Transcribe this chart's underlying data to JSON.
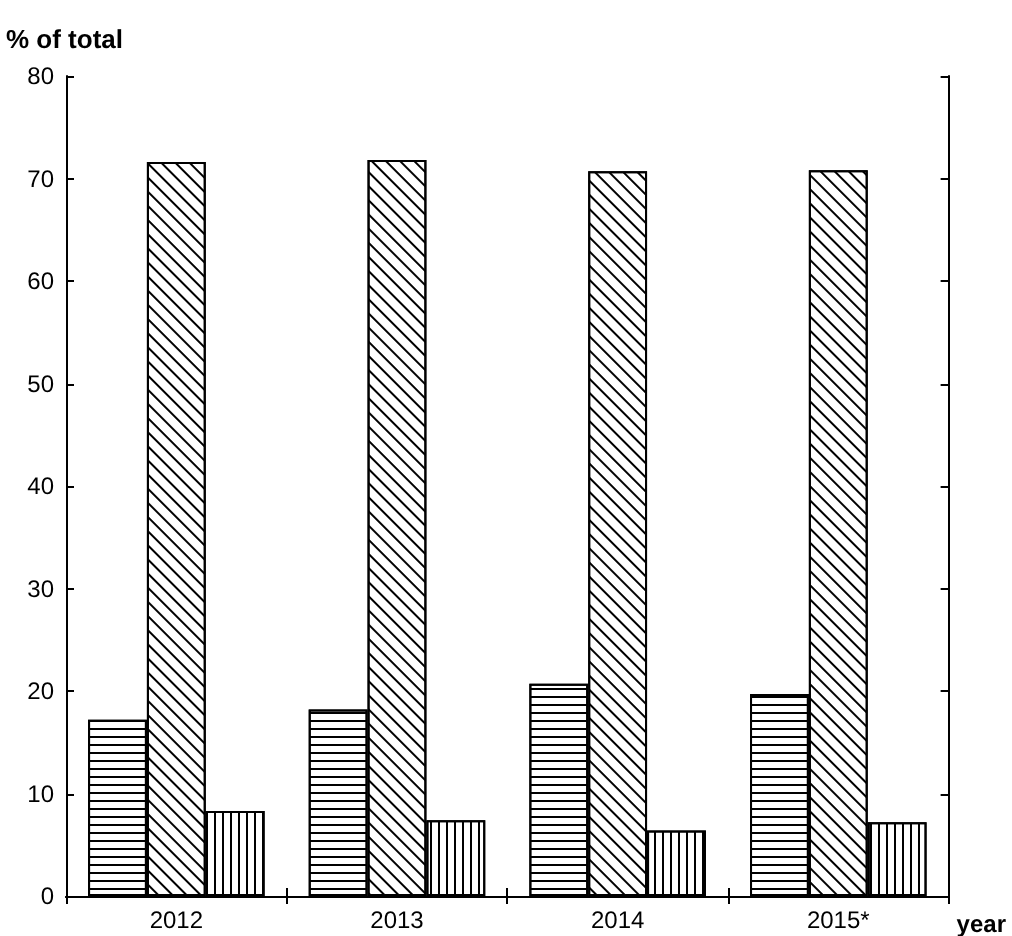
{
  "chart_data": {
    "type": "bar",
    "ylabel": "% of total",
    "xlabel": "year",
    "categories": [
      "2012",
      "2013",
      "2014",
      "2015*"
    ],
    "series": [
      {
        "color": "#ffffff",
        "values": [
          17.2,
          18.2,
          20.7,
          19.7
        ]
      },
      {
        "color": "#ffffff",
        "values": [
          71.6,
          71.8,
          70.7,
          70.8
        ]
      },
      {
        "color": "#ffffff",
        "values": [
          8.3,
          7.4,
          6.4,
          7.2
        ]
      }
    ],
    "ylim": [
      0,
      80
    ],
    "yticks": [
      0,
      10,
      20,
      30,
      40,
      50,
      60,
      70,
      80
    ],
    "grid": false
  }
}
